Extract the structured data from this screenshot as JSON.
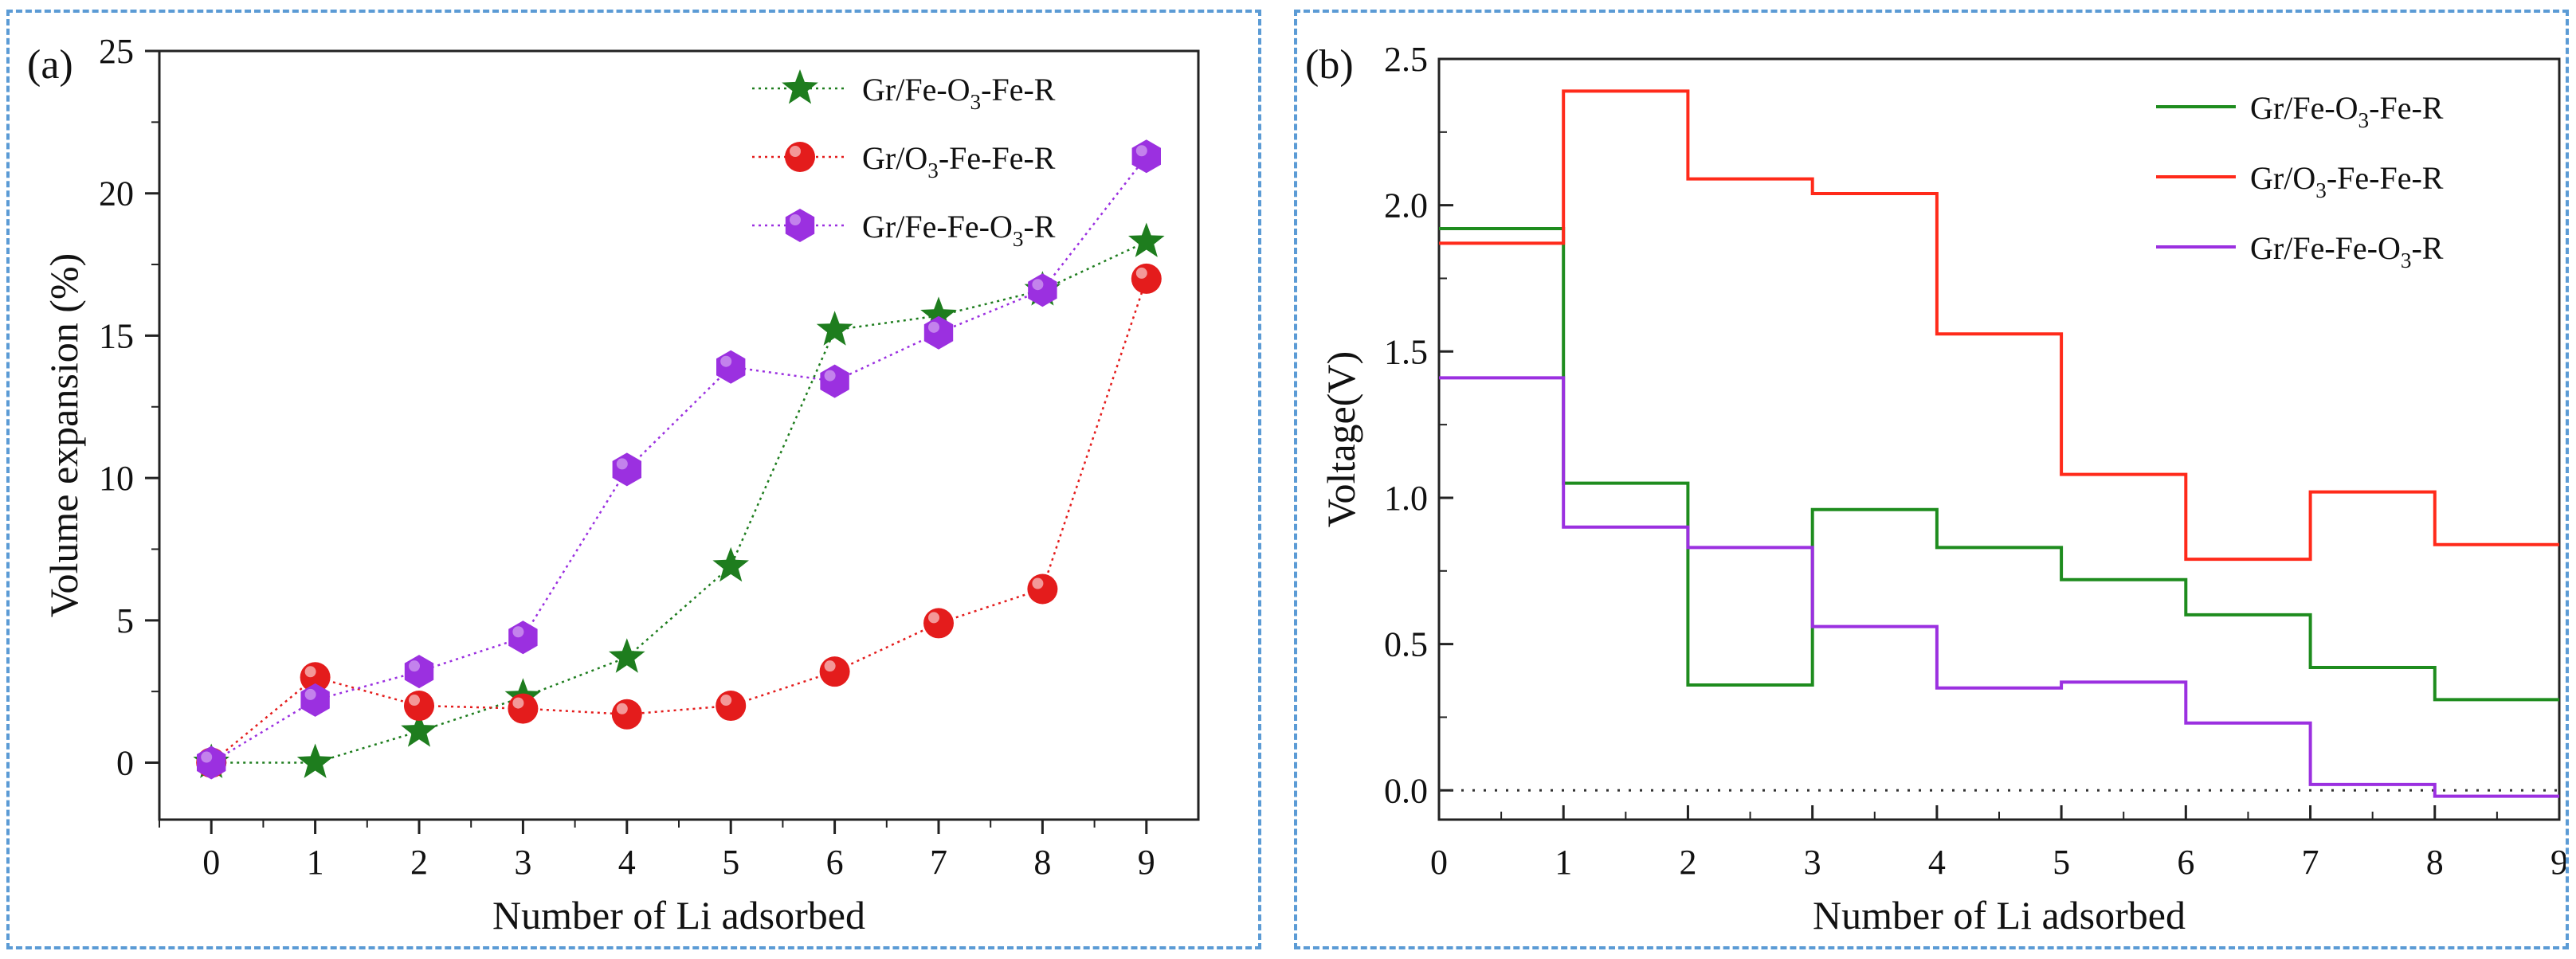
{
  "chart_data": [
    {
      "panel_label": "(a)",
      "type": "scatter",
      "xlabel": "Number of Li adsorbed",
      "ylabel": "Volume expansion (%)",
      "xlim": [
        -0.5,
        9.5
      ],
      "ylim": [
        -2,
        25
      ],
      "xticks": [
        0,
        1,
        2,
        3,
        4,
        5,
        6,
        7,
        8,
        9
      ],
      "yticks": [
        0,
        5,
        10,
        15,
        20,
        25
      ],
      "legend_position": "top-right",
      "series": [
        {
          "name": "Gr/Fe-O3-Fe-R",
          "label_parts": [
            "Gr/Fe-O",
            "3",
            "-Fe-R"
          ],
          "marker": "star",
          "color": "#1e7d1e",
          "x": [
            0,
            1,
            2,
            3,
            4,
            5,
            6,
            7,
            8,
            9
          ],
          "y": [
            0,
            0,
            1.1,
            2.3,
            3.7,
            6.9,
            15.2,
            15.7,
            16.6,
            18.3
          ]
        },
        {
          "name": "Gr/O3-Fe-Fe-R",
          "label_parts": [
            "Gr/O",
            "3",
            "-Fe-Fe-R"
          ],
          "marker": "circle",
          "color": "#e41c1c",
          "x": [
            0,
            1,
            2,
            3,
            4,
            5,
            6,
            7,
            8,
            9
          ],
          "y": [
            0,
            3.0,
            2.0,
            1.9,
            1.7,
            2.0,
            3.2,
            4.9,
            6.1,
            17.0
          ]
        },
        {
          "name": "Gr/Fe-Fe-O3-R",
          "label_parts": [
            "Gr/Fe-Fe-O",
            "3",
            "-R"
          ],
          "marker": "hexagon",
          "color": "#9b30e0",
          "x": [
            0,
            1,
            2,
            3,
            4,
            5,
            6,
            7,
            8,
            9
          ],
          "y": [
            0,
            2.2,
            3.2,
            4.4,
            10.3,
            13.9,
            13.4,
            15.1,
            16.6,
            21.3
          ]
        }
      ]
    },
    {
      "panel_label": "(b)",
      "type": "line",
      "subtype": "step",
      "xlabel": "Number of Li adsorbed",
      "ylabel": "Voltage(V)",
      "xlim": [
        0,
        9
      ],
      "ylim": [
        -0.1,
        2.5
      ],
      "xticks": [
        0,
        1,
        2,
        3,
        4,
        5,
        6,
        7,
        8,
        9
      ],
      "yticks": [
        "0.0",
        "0.5",
        "1.0",
        "1.5",
        "2.0",
        "2.5"
      ],
      "reference_line_y": 0,
      "legend_position": "top-right",
      "series": [
        {
          "name": "Gr/Fe-O3-Fe-R",
          "label_parts": [
            "Gr/Fe-O",
            "3",
            "-Fe-R"
          ],
          "color": "#1e8c1e",
          "values": [
            1.92,
            1.05,
            0.36,
            0.96,
            0.83,
            0.72,
            0.6,
            0.42,
            0.31
          ]
        },
        {
          "name": "Gr/O3-Fe-Fe-R",
          "label_parts": [
            "Gr/O",
            "3",
            "-Fe-Fe-R"
          ],
          "color": "#ff2a1a",
          "values": [
            1.87,
            2.39,
            2.09,
            2.04,
            1.56,
            1.08,
            0.79,
            1.02,
            0.84
          ]
        },
        {
          "name": "Gr/Fe-Fe-O3-R",
          "label_parts": [
            "Gr/Fe-Fe-O",
            "3",
            "-R"
          ],
          "color": "#9b30e0",
          "values": [
            1.41,
            0.9,
            0.83,
            0.56,
            0.35,
            0.37,
            0.23,
            0.02,
            -0.02
          ]
        }
      ]
    }
  ]
}
